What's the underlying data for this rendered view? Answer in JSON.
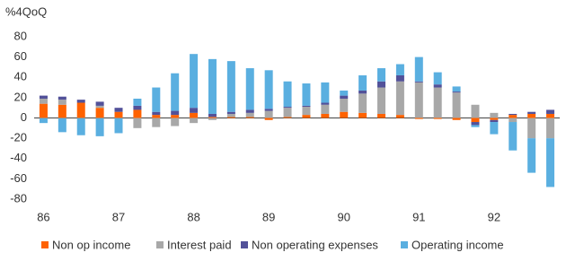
{
  "chart_data": {
    "type": "stacked_bar",
    "y_label": "%4QoQ",
    "categories": [
      "86",
      null,
      null,
      null,
      "87",
      null,
      null,
      null,
      "88",
      null,
      null,
      null,
      "89",
      null,
      null,
      null,
      "90",
      null,
      null,
      null,
      "91",
      null,
      null,
      null,
      "92",
      null,
      null,
      null
    ],
    "series": [
      {
        "name": "Non op income",
        "color": "#ff6200",
        "values": [
          14,
          13,
          15,
          10,
          6,
          8,
          3,
          3,
          5,
          1,
          1,
          1,
          -2,
          1,
          3,
          4,
          6,
          5,
          4,
          3,
          -1,
          -1,
          -2,
          -4,
          -2,
          3,
          4,
          4
        ]
      },
      {
        "name": "Interest paid",
        "color": "#a8a8a8",
        "values": [
          5,
          5,
          0,
          2,
          0,
          -10,
          -9,
          -8,
          -5,
          -2,
          3,
          4,
          7,
          9,
          8,
          9,
          13,
          19,
          26,
          33,
          35,
          30,
          25,
          13,
          5,
          -4,
          -20,
          -20
        ]
      },
      {
        "name": "Non operating expenses",
        "color": "#525199",
        "values": [
          3,
          3,
          3,
          4,
          4,
          4,
          3,
          4,
          5,
          3,
          2,
          3,
          2,
          1,
          1,
          2,
          3,
          3,
          6,
          6,
          1,
          3,
          1,
          -3,
          -2,
          1,
          2,
          4
        ]
      },
      {
        "name": "Operating income",
        "color": "#5aafe0",
        "values": [
          -5,
          -14,
          -17,
          -18,
          -15,
          7,
          24,
          37,
          53,
          54,
          50,
          41,
          38,
          25,
          22,
          20,
          5,
          15,
          13,
          11,
          24,
          12,
          5,
          -2,
          -12,
          -28,
          -34,
          -48
        ]
      }
    ],
    "ylim": [
      -85,
      85
    ],
    "yticks": [
      -80,
      -60,
      -40,
      -20,
      0,
      20,
      40,
      60,
      80
    ]
  }
}
